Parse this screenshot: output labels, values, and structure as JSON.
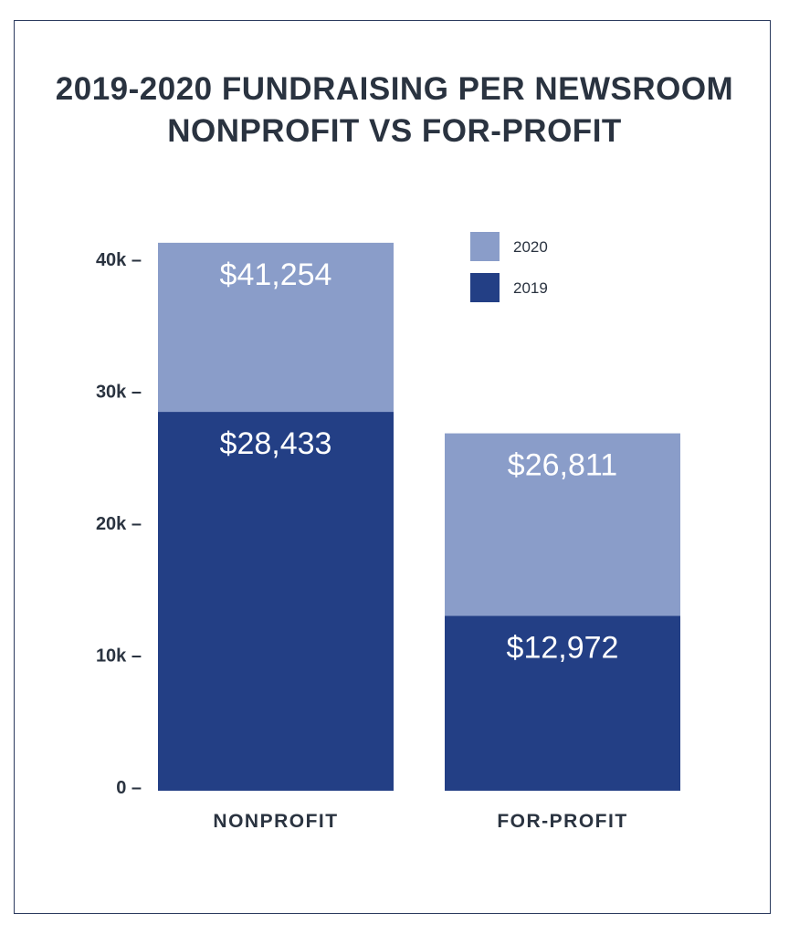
{
  "chart_data": {
    "type": "bar",
    "title": [
      "2019-2020 FUNDRAISING PER NEWSROOM",
      "NONPROFIT VS FOR-PROFIT"
    ],
    "categories": [
      "NONPROFIT",
      "FOR-PROFIT"
    ],
    "series": [
      {
        "name": "2020",
        "values": [
          41254,
          26811
        ],
        "labels": [
          "$41,254",
          "$26,811"
        ],
        "color": "#8a9dc9"
      },
      {
        "name": "2019",
        "values": [
          28433,
          12972
        ],
        "labels": [
          "$28,433",
          "$12,972"
        ],
        "color": "#233f85"
      }
    ],
    "yticks": [
      0,
      10000,
      20000,
      30000,
      40000
    ],
    "ytick_labels": [
      "0 –",
      "10k –",
      "20k –",
      "30k –",
      "40k –"
    ],
    "ylim": [
      0,
      42000
    ],
    "legend": "top-right",
    "grid": false,
    "xlabel": "",
    "ylabel": ""
  }
}
